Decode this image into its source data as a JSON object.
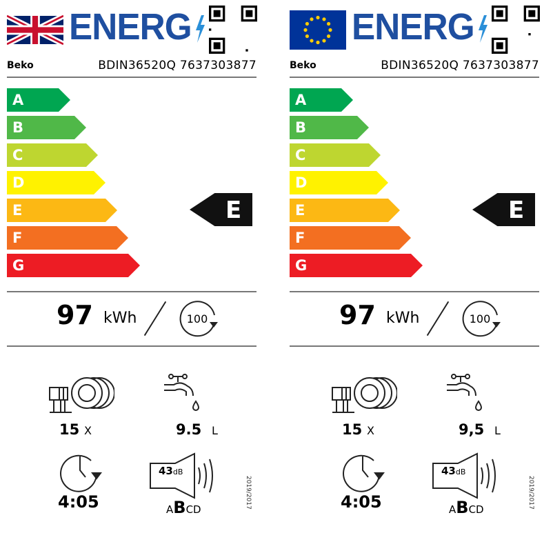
{
  "labels": [
    {
      "flag": "uk-flag",
      "energy_word": "ENERG",
      "brand": "Beko",
      "model": "BDIN36520Q 7637303877",
      "classes": [
        "A",
        "B",
        "C",
        "D",
        "E",
        "F",
        "G"
      ],
      "rating": "E",
      "energy_kwh": "97",
      "energy_unit": "kWh",
      "cycles": "100",
      "place_settings": "15",
      "place_unit": "X",
      "water": "9.5",
      "water_unit": "L",
      "duration": "4:05",
      "noise_db": "43",
      "noise_unit": "dB",
      "noise_classes": [
        "A",
        "B",
        "CD"
      ],
      "regulation": "2019/2017"
    },
    {
      "flag": "eu-flag",
      "energy_word": "ENERG",
      "brand": "Beko",
      "model": "BDIN36520Q 7637303877",
      "classes": [
        "A",
        "B",
        "C",
        "D",
        "E",
        "F",
        "G"
      ],
      "rating": "E",
      "energy_kwh": "97",
      "energy_unit": "kWh",
      "cycles": "100",
      "place_settings": "15",
      "place_unit": "X",
      "water": "9,5",
      "water_unit": "L",
      "duration": "4:05",
      "noise_db": "43",
      "noise_unit": "dB",
      "noise_classes": [
        "A",
        "B",
        "CD"
      ],
      "regulation": "2019/2017"
    }
  ],
  "colors": {
    "A": "#00a651",
    "B": "#50b848",
    "C": "#bed630",
    "D": "#fff200",
    "E": "#fcb814",
    "F": "#f36f21",
    "G": "#ed1c24",
    "energ_blue": "#1f4fa0"
  }
}
